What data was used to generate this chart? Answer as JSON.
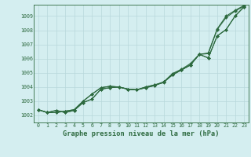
{
  "title": "Graphe pression niveau de la mer (hPa)",
  "background_color": "#d4eef0",
  "grid_color": "#b8d8db",
  "line_color": "#2d6a3f",
  "xlim": [
    -0.5,
    23.5
  ],
  "ylim": [
    1001.5,
    1009.8
  ],
  "xticks": [
    0,
    1,
    2,
    3,
    4,
    5,
    6,
    7,
    8,
    9,
    10,
    11,
    12,
    13,
    14,
    15,
    16,
    17,
    18,
    19,
    20,
    21,
    22,
    23
  ],
  "yticks": [
    1002,
    1003,
    1004,
    1005,
    1006,
    1007,
    1008,
    1009
  ],
  "series": [
    [
      1002.4,
      1002.2,
      1002.35,
      1002.2,
      1002.35,
      1002.9,
      1003.15,
      1003.85,
      1003.95,
      1004.0,
      1003.85,
      1003.8,
      1004.0,
      1004.15,
      1004.3,
      1004.9,
      1005.2,
      1005.55,
      1006.3,
      1006.4,
      1008.1,
      1009.0,
      1009.4,
      1009.75
    ],
    [
      1002.4,
      1002.2,
      1002.35,
      1002.2,
      1002.35,
      1002.9,
      1003.15,
      1003.85,
      1003.95,
      1004.0,
      1003.85,
      1003.8,
      1004.0,
      1004.15,
      1004.35,
      1004.95,
      1005.25,
      1005.65,
      1006.3,
      1006.35,
      1008.05,
      1008.9,
      1009.35,
      1009.7
    ],
    [
      1002.4,
      1002.2,
      1002.2,
      1002.3,
      1002.4,
      1003.0,
      1003.5,
      1003.95,
      1004.05,
      1004.0,
      1003.85,
      1003.8,
      1003.95,
      1004.1,
      1004.35,
      1004.85,
      1005.2,
      1005.55,
      1006.3,
      1006.05,
      1007.6,
      1008.05,
      1009.0,
      1009.65
    ],
    [
      1002.4,
      1002.2,
      1002.2,
      1002.3,
      1002.4,
      1003.0,
      1003.5,
      1003.95,
      1004.05,
      1004.0,
      1003.85,
      1003.8,
      1003.95,
      1004.1,
      1004.35,
      1004.85,
      1005.2,
      1005.55,
      1006.3,
      1006.05,
      1007.6,
      1008.05,
      1009.0,
      1009.65
    ]
  ],
  "ylabel_fontsize": 5.2,
  "xlabel_fontsize": 6.2,
  "tick_fontsize": 4.8
}
